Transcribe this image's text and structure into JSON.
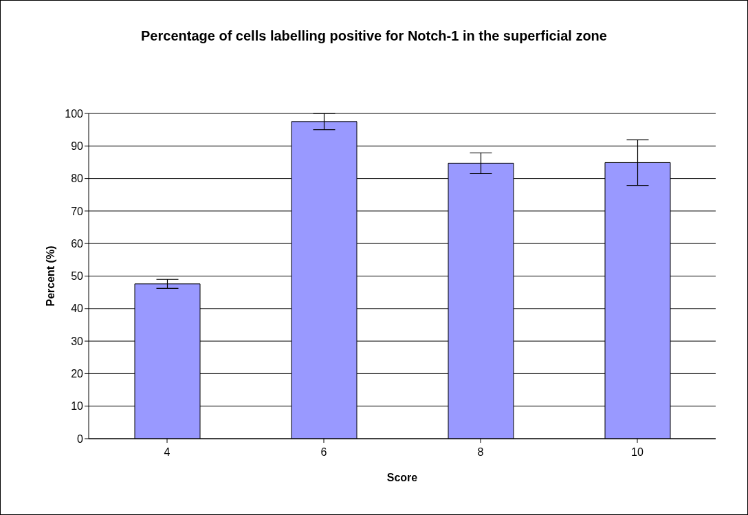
{
  "chart_data": {
    "type": "bar",
    "title": "Percentage of cells labelling positive for Notch-1 in the superficial zone",
    "xlabel": "Score",
    "ylabel": "Percent (%)",
    "categories": [
      "4",
      "6",
      "8",
      "10"
    ],
    "values": [
      47.6,
      97.5,
      84.7,
      84.9
    ],
    "errors": [
      1.4,
      2.5,
      3.2,
      7
    ],
    "color": "#9999ff",
    "ylim": [
      0,
      100
    ],
    "yticks": [
      0,
      10,
      20,
      30,
      40,
      50,
      60,
      70,
      80,
      90,
      100
    ],
    "grid": "y"
  }
}
